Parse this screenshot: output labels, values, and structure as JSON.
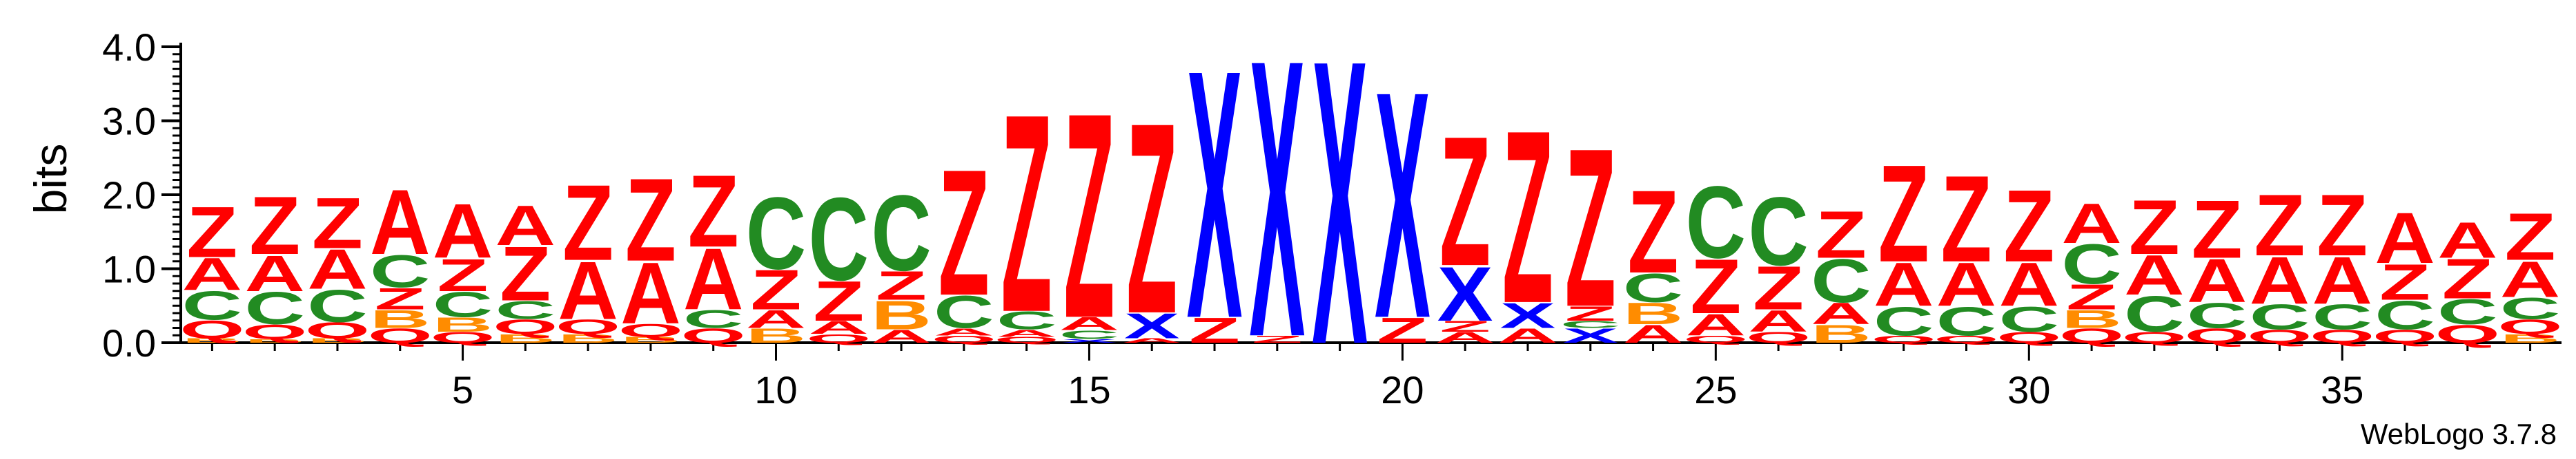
{
  "chart_data": {
    "type": "sequence-logo",
    "ylabel": "bits",
    "ylim": [
      0,
      4
    ],
    "y_ticks": [
      "0.0",
      "1.0",
      "2.0",
      "3.0",
      "4.0"
    ],
    "x_ticks": [
      "5",
      "10",
      "15",
      "20",
      "25",
      "30",
      "35"
    ],
    "x_tick_positions": [
      5,
      10,
      15,
      20,
      25,
      30,
      35
    ],
    "credit": "WebLogo 3.7.8",
    "colors": {
      "Z": "#ff0000",
      "A": "#ff0000",
      "X": "#0000ff",
      "C": "#228b22",
      "Q": "#ff0000",
      "B": "#ff8c00"
    },
    "positions": [
      {
        "pos": 1,
        "stack": [
          [
            "B",
            0.06
          ],
          [
            "Q",
            0.25
          ],
          [
            "C",
            0.4
          ],
          [
            "A",
            0.45
          ],
          [
            "Z",
            0.7
          ]
        ]
      },
      {
        "pos": 2,
        "stack": [
          [
            "B",
            0.05
          ],
          [
            "Q",
            0.2
          ],
          [
            "C",
            0.45
          ],
          [
            "A",
            0.5
          ],
          [
            "Z",
            0.8
          ]
        ]
      },
      {
        "pos": 3,
        "stack": [
          [
            "B",
            0.06
          ],
          [
            "Q",
            0.22
          ],
          [
            "C",
            0.45
          ],
          [
            "A",
            0.55
          ],
          [
            "Z",
            0.7
          ]
        ]
      },
      {
        "pos": 4,
        "stack": [
          [
            "Q",
            0.2
          ],
          [
            "B",
            0.25
          ],
          [
            "Z",
            0.3
          ],
          [
            "C",
            0.45
          ],
          [
            "A",
            0.9
          ]
        ]
      },
      {
        "pos": 5,
        "stack": [
          [
            "Q",
            0.15
          ],
          [
            "B",
            0.2
          ],
          [
            "C",
            0.35
          ],
          [
            "Z",
            0.45
          ],
          [
            "A",
            0.75
          ]
        ]
      },
      {
        "pos": 6,
        "stack": [
          [
            "B",
            0.12
          ],
          [
            "Q",
            0.2
          ],
          [
            "C",
            0.25
          ],
          [
            "Z",
            0.75
          ],
          [
            "A",
            0.55
          ]
        ]
      },
      {
        "pos": 7,
        "stack": [
          [
            "B",
            0.12
          ],
          [
            "Q",
            0.2
          ],
          [
            "A",
            0.8
          ],
          [
            "Z",
            1.05
          ]
        ]
      },
      {
        "pos": 8,
        "stack": [
          [
            "B",
            0.08
          ],
          [
            "Q",
            0.18
          ],
          [
            "A",
            0.85
          ],
          [
            "Z",
            1.15
          ]
        ]
      },
      {
        "pos": 9,
        "stack": [
          [
            "Q",
            0.2
          ],
          [
            "C",
            0.25
          ],
          [
            "A",
            0.85
          ],
          [
            "Z",
            1.0
          ]
        ]
      },
      {
        "pos": 10,
        "stack": [
          [
            "B",
            0.2
          ],
          [
            "A",
            0.25
          ],
          [
            "Z",
            0.55
          ],
          [
            "C",
            1.0
          ]
        ]
      },
      {
        "pos": 11,
        "stack": [
          [
            "Q",
            0.12
          ],
          [
            "A",
            0.18
          ],
          [
            "Z",
            0.55
          ],
          [
            "C",
            1.15
          ]
        ]
      },
      {
        "pos": 12,
        "stack": [
          [
            "A",
            0.18
          ],
          [
            "B",
            0.4
          ],
          [
            "Z",
            0.4
          ],
          [
            "C",
            1.05
          ]
        ]
      },
      {
        "pos": 13,
        "stack": [
          [
            "Q",
            0.1
          ],
          [
            "A",
            0.1
          ],
          [
            "C",
            0.45
          ],
          [
            "Z",
            1.75
          ]
        ]
      },
      {
        "pos": 14,
        "stack": [
          [
            "Q",
            0.08
          ],
          [
            "A",
            0.1
          ],
          [
            "C",
            0.25
          ],
          [
            "Z",
            2.75
          ]
        ]
      },
      {
        "pos": 15,
        "stack": [
          [
            "X",
            0.05
          ],
          [
            "C",
            0.12
          ],
          [
            "A",
            0.18
          ],
          [
            "Z",
            2.85
          ]
        ]
      },
      {
        "pos": 16,
        "stack": [
          [
            "A",
            0.06
          ],
          [
            "X",
            0.35
          ],
          [
            "Z",
            2.65
          ]
        ]
      },
      {
        "pos": 17,
        "stack": [
          [
            "Z",
            0.35
          ],
          [
            "X",
            3.45
          ]
        ]
      },
      {
        "pos": 18,
        "stack": [
          [
            "Z",
            0.1
          ],
          [
            "X",
            3.85
          ]
        ]
      },
      {
        "pos": 19,
        "stack": [
          [
            "X",
            3.95
          ]
        ]
      },
      {
        "pos": 20,
        "stack": [
          [
            "Z",
            0.35
          ],
          [
            "X",
            3.15
          ]
        ]
      },
      {
        "pos": 21,
        "stack": [
          [
            "A",
            0.15
          ],
          [
            "Z",
            0.15
          ],
          [
            "X",
            0.75
          ],
          [
            "Z",
            1.8
          ]
        ]
      },
      {
        "pos": 22,
        "stack": [
          [
            "A",
            0.2
          ],
          [
            "X",
            0.35
          ],
          [
            "Z",
            2.4
          ]
        ]
      },
      {
        "pos": 23,
        "stack": [
          [
            "X",
            0.2
          ],
          [
            "C",
            0.1
          ],
          [
            "Z",
            0.2
          ],
          [
            "Z",
            2.2
          ]
        ]
      },
      {
        "pos": 24,
        "stack": [
          [
            "A",
            0.25
          ],
          [
            "B",
            0.3
          ],
          [
            "C",
            0.4
          ],
          [
            "Z",
            1.15
          ]
        ]
      },
      {
        "pos": 25,
        "stack": [
          [
            "Q",
            0.1
          ],
          [
            "A",
            0.3
          ],
          [
            "Z",
            0.75
          ],
          [
            "C",
            1.0
          ]
        ]
      },
      {
        "pos": 26,
        "stack": [
          [
            "Q",
            0.15
          ],
          [
            "A",
            0.3
          ],
          [
            "Z",
            0.6
          ],
          [
            "C",
            0.95
          ]
        ]
      },
      {
        "pos": 27,
        "stack": [
          [
            "B",
            0.25
          ],
          [
            "A",
            0.3
          ],
          [
            "C",
            0.6
          ],
          [
            "Z",
            0.65
          ]
        ]
      },
      {
        "pos": 28,
        "stack": [
          [
            "Q",
            0.1
          ],
          [
            "C",
            0.4
          ],
          [
            "A",
            0.6
          ],
          [
            "Z",
            1.35
          ]
        ]
      },
      {
        "pos": 29,
        "stack": [
          [
            "Q",
            0.1
          ],
          [
            "C",
            0.4
          ],
          [
            "A",
            0.6
          ],
          [
            "Z",
            1.2
          ]
        ]
      },
      {
        "pos": 30,
        "stack": [
          [
            "Q",
            0.15
          ],
          [
            "C",
            0.35
          ],
          [
            "A",
            0.6
          ],
          [
            "Z",
            1.0
          ]
        ]
      },
      {
        "pos": 31,
        "stack": [
          [
            "Q",
            0.2
          ],
          [
            "B",
            0.25
          ],
          [
            "Z",
            0.35
          ],
          [
            "C",
            0.55
          ],
          [
            "A",
            0.55
          ]
        ]
      },
      {
        "pos": 32,
        "stack": [
          [
            "Q",
            0.15
          ],
          [
            "C",
            0.5
          ],
          [
            "A",
            0.55
          ],
          [
            "Z",
            0.75
          ]
        ]
      },
      {
        "pos": 33,
        "stack": [
          [
            "Q",
            0.2
          ],
          [
            "C",
            0.35
          ],
          [
            "A",
            0.6
          ],
          [
            "Z",
            0.8
          ]
        ]
      },
      {
        "pos": 34,
        "stack": [
          [
            "Q",
            0.18
          ],
          [
            "C",
            0.35
          ],
          [
            "A",
            0.65
          ],
          [
            "Z",
            0.85
          ]
        ]
      },
      {
        "pos": 35,
        "stack": [
          [
            "Q",
            0.18
          ],
          [
            "C",
            0.35
          ],
          [
            "A",
            0.65
          ],
          [
            "Z",
            0.85
          ]
        ]
      },
      {
        "pos": 36,
        "stack": [
          [
            "Q",
            0.18
          ],
          [
            "C",
            0.4
          ],
          [
            "Z",
            0.5
          ],
          [
            "A",
            0.7
          ]
        ]
      },
      {
        "pos": 37,
        "stack": [
          [
            "Q",
            0.25
          ],
          [
            "C",
            0.35
          ],
          [
            "Z",
            0.55
          ],
          [
            "A",
            0.5
          ]
        ]
      },
      {
        "pos": 38,
        "stack": [
          [
            "B",
            0.12
          ],
          [
            "Q",
            0.2
          ],
          [
            "C",
            0.3
          ],
          [
            "A",
            0.5
          ],
          [
            "Z",
            0.65
          ]
        ]
      }
    ]
  }
}
